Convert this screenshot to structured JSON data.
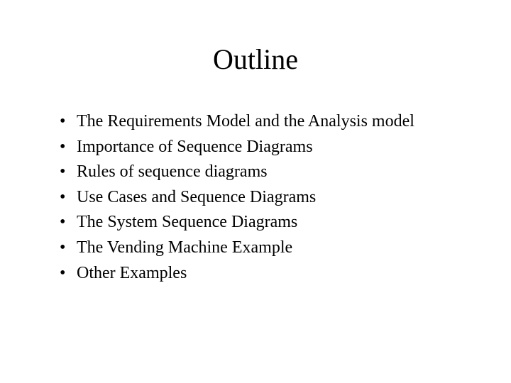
{
  "slide": {
    "title": "Outline",
    "title_fontsize": 40,
    "body_fontsize": 24,
    "font_family": "Times New Roman",
    "background_color": "#ffffff",
    "text_color": "#000000",
    "bullets": [
      "The Requirements Model and the Analysis model",
      "Importance of Sequence Diagrams",
      "Rules of sequence diagrams",
      "Use Cases and Sequence Diagrams",
      "The System Sequence Diagrams",
      "The Vending Machine Example",
      "Other Examples"
    ],
    "bullet_marker": "•"
  }
}
